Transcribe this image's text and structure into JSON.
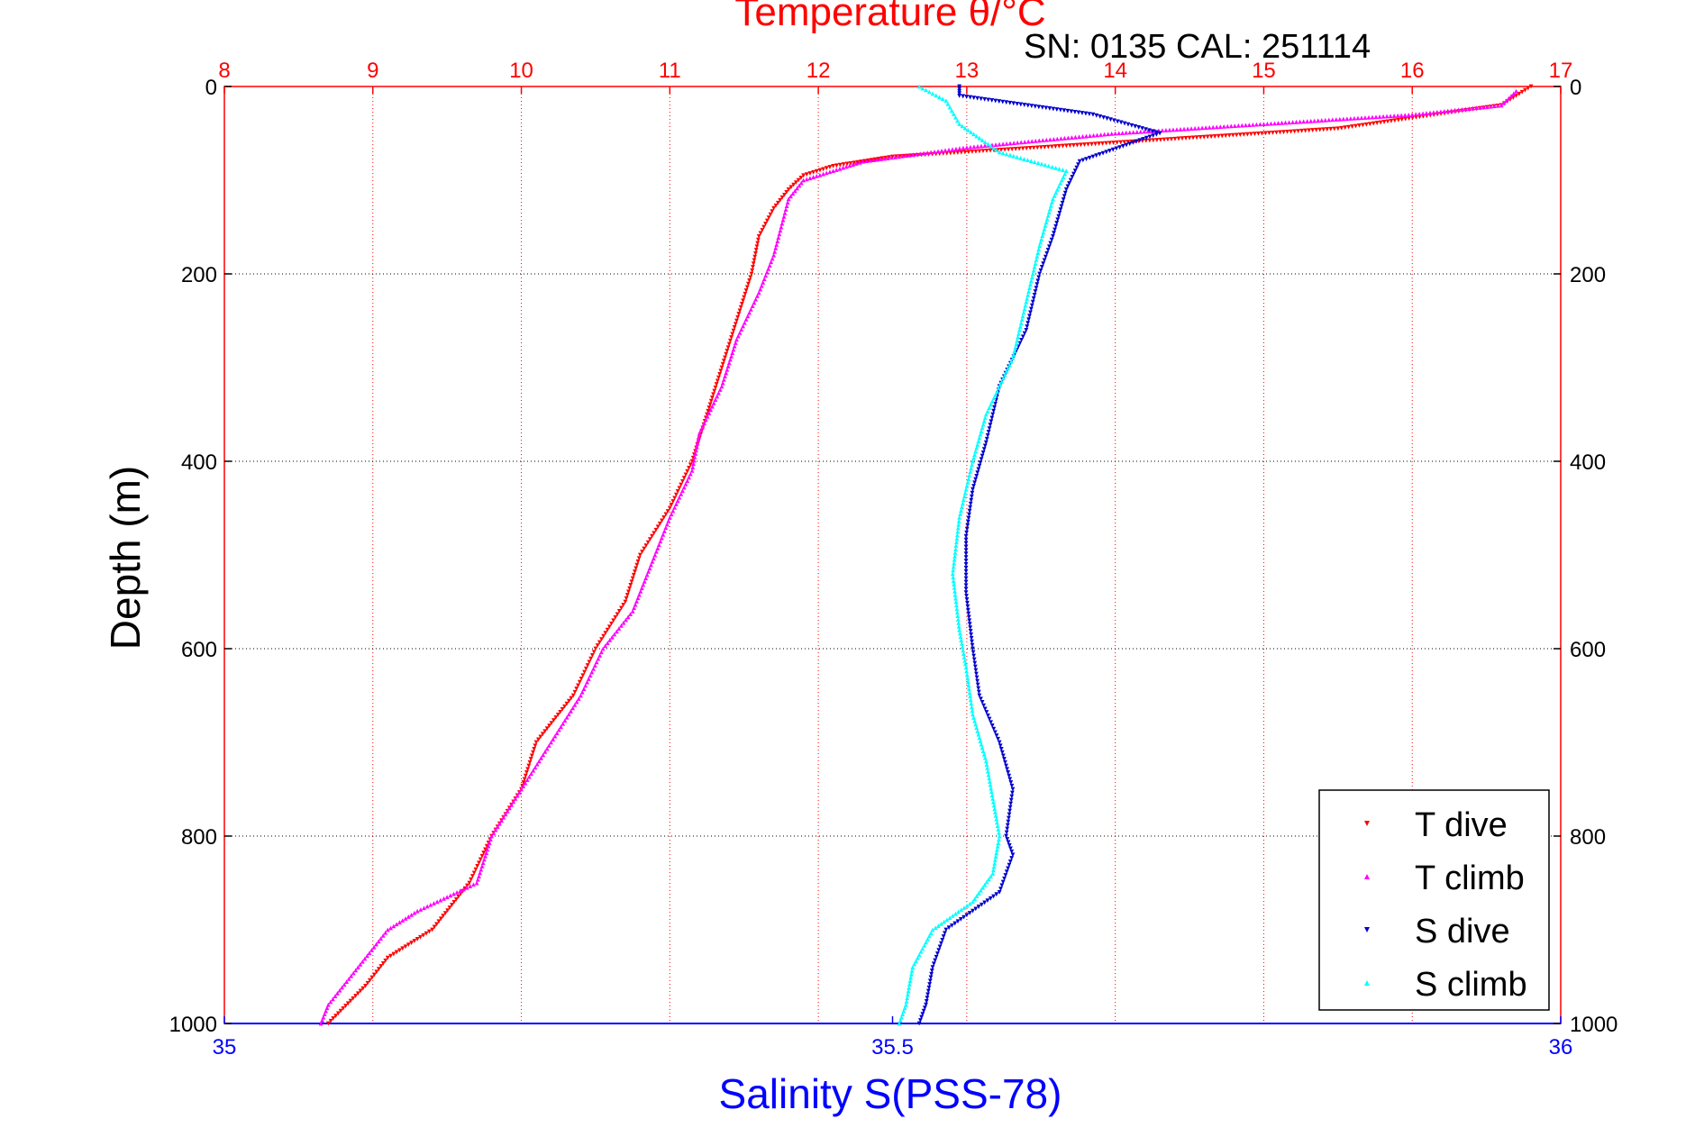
{
  "chart_data": {
    "type": "scatter",
    "title": "Temperature θ/°C",
    "subtitle": "SN: 0135  CAL: 251114",
    "ylabel": "Depth (m)",
    "xlabel": "Salinity S(PSS-78)",
    "y_axis": {
      "reversed": true,
      "ylim": [
        0,
        1000
      ],
      "ticks": [
        0,
        200,
        400,
        600,
        800,
        1000
      ],
      "tick_labels": [
        "0",
        "200",
        "400",
        "600",
        "800",
        "1000"
      ]
    },
    "temperature_axis": {
      "position": "top",
      "xlim": [
        8,
        17
      ],
      "ticks": [
        8,
        9,
        10,
        11,
        12,
        13,
        14,
        15,
        16,
        17
      ],
      "tick_labels": [
        "8",
        "9",
        "10",
        "11",
        "12",
        "13",
        "14",
        "15",
        "16",
        "17"
      ],
      "color": "#ff0000"
    },
    "salinity_axis": {
      "position": "bottom",
      "xlim": [
        35,
        36
      ],
      "ticks": [
        35,
        35.5,
        36
      ],
      "tick_labels": [
        "35",
        "35.5",
        "36"
      ],
      "color": "#0000ff"
    },
    "grid": true,
    "legend_position": "bottom-right",
    "series": [
      {
        "name": "T dive",
        "axis": "temperature",
        "marker": "triangle-down",
        "color": "#ff0000",
        "points": [
          [
            16.8,
            0
          ],
          [
            16.7,
            10
          ],
          [
            16.6,
            20
          ],
          [
            15.5,
            45
          ],
          [
            14.5,
            55
          ],
          [
            13.5,
            65
          ],
          [
            12.5,
            75
          ],
          [
            12.1,
            85
          ],
          [
            11.9,
            95
          ],
          [
            11.8,
            110
          ],
          [
            11.7,
            130
          ],
          [
            11.6,
            160
          ],
          [
            11.55,
            200
          ],
          [
            11.45,
            250
          ],
          [
            11.35,
            300
          ],
          [
            11.25,
            350
          ],
          [
            11.15,
            400
          ],
          [
            11.0,
            450
          ],
          [
            10.8,
            500
          ],
          [
            10.7,
            550
          ],
          [
            10.5,
            600
          ],
          [
            10.35,
            650
          ],
          [
            10.1,
            700
          ],
          [
            10.0,
            750
          ],
          [
            9.8,
            800
          ],
          [
            9.65,
            850
          ],
          [
            9.4,
            900
          ],
          [
            9.1,
            930
          ],
          [
            8.95,
            960
          ],
          [
            8.7,
            1000
          ]
        ]
      },
      {
        "name": "T climb",
        "axis": "temperature",
        "marker": "triangle-up",
        "color": "#ff00ff",
        "points": [
          [
            16.7,
            5
          ],
          [
            16.6,
            20
          ],
          [
            16.0,
            30
          ],
          [
            15.0,
            40
          ],
          [
            14.0,
            50
          ],
          [
            13.0,
            65
          ],
          [
            12.3,
            80
          ],
          [
            12.1,
            90
          ],
          [
            11.9,
            100
          ],
          [
            11.8,
            120
          ],
          [
            11.75,
            150
          ],
          [
            11.7,
            180
          ],
          [
            11.6,
            220
          ],
          [
            11.45,
            270
          ],
          [
            11.35,
            320
          ],
          [
            11.2,
            370
          ],
          [
            11.15,
            410
          ],
          [
            11.0,
            460
          ],
          [
            10.9,
            500
          ],
          [
            10.75,
            560
          ],
          [
            10.55,
            600
          ],
          [
            10.4,
            650
          ],
          [
            10.2,
            700
          ],
          [
            10.0,
            750
          ],
          [
            9.8,
            800
          ],
          [
            9.7,
            850
          ],
          [
            9.3,
            880
          ],
          [
            9.1,
            900
          ],
          [
            8.9,
            940
          ],
          [
            8.7,
            980
          ],
          [
            8.65,
            1000
          ]
        ]
      },
      {
        "name": "S dive",
        "axis": "salinity",
        "marker": "triangle-down",
        "color": "#0000cc",
        "points": [
          [
            35.55,
            0
          ],
          [
            35.55,
            10
          ],
          [
            35.65,
            30
          ],
          [
            35.7,
            50
          ],
          [
            35.64,
            80
          ],
          [
            35.63,
            110
          ],
          [
            35.62,
            160
          ],
          [
            35.61,
            200
          ],
          [
            35.6,
            260
          ],
          [
            35.58,
            320
          ],
          [
            35.57,
            380
          ],
          [
            35.56,
            430
          ],
          [
            35.555,
            480
          ],
          [
            35.555,
            540
          ],
          [
            35.56,
            600
          ],
          [
            35.565,
            650
          ],
          [
            35.58,
            700
          ],
          [
            35.59,
            750
          ],
          [
            35.585,
            800
          ],
          [
            35.59,
            820
          ],
          [
            35.58,
            860
          ],
          [
            35.54,
            900
          ],
          [
            35.53,
            940
          ],
          [
            35.525,
            980
          ],
          [
            35.52,
            1000
          ]
        ]
      },
      {
        "name": "S climb",
        "axis": "salinity",
        "marker": "triangle-up",
        "color": "#00ffff",
        "points": [
          [
            35.52,
            0
          ],
          [
            35.54,
            15
          ],
          [
            35.55,
            40
          ],
          [
            35.58,
            70
          ],
          [
            35.63,
            90
          ],
          [
            35.62,
            120
          ],
          [
            35.61,
            170
          ],
          [
            35.6,
            230
          ],
          [
            35.59,
            290
          ],
          [
            35.57,
            350
          ],
          [
            35.56,
            400
          ],
          [
            35.55,
            460
          ],
          [
            35.545,
            520
          ],
          [
            35.55,
            580
          ],
          [
            35.555,
            620
          ],
          [
            35.56,
            670
          ],
          [
            35.57,
            720
          ],
          [
            35.575,
            760
          ],
          [
            35.58,
            800
          ],
          [
            35.575,
            840
          ],
          [
            35.56,
            870
          ],
          [
            35.53,
            900
          ],
          [
            35.515,
            940
          ],
          [
            35.51,
            980
          ],
          [
            35.505,
            1000
          ]
        ]
      }
    ]
  }
}
